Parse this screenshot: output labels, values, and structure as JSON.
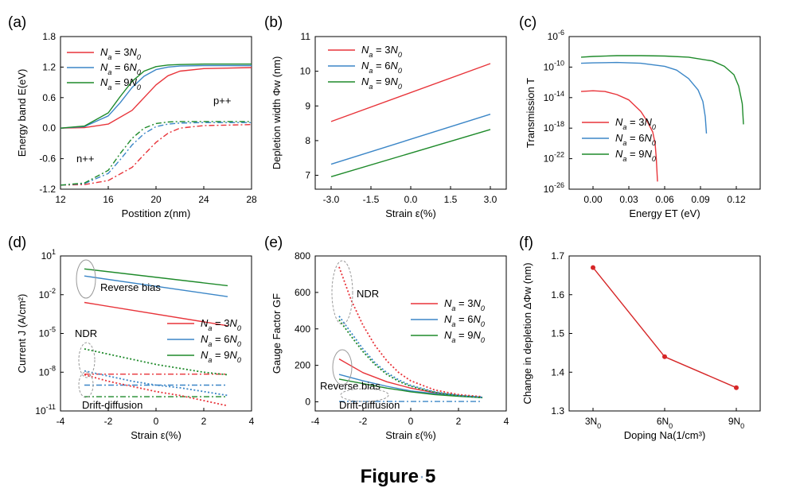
{
  "figure_caption": "Figure",
  "figure_number": "5",
  "panel_labels": [
    "(a)",
    "(b)",
    "(c)",
    "(d)",
    "(e)",
    "(f)"
  ],
  "colors": {
    "red": "#e8343a",
    "blue": "#3b86c7",
    "green": "#1e8a2a",
    "f_line": "#d62728"
  },
  "legend_labels": [
    "N",
    "a",
    " = 3",
    "N",
    "0",
    "N",
    "a",
    " = 6",
    "N",
    "0",
    "N",
    "a",
    " = 9",
    "N",
    "0"
  ],
  "chart_data": [
    {
      "panel": "(a)",
      "type": "line",
      "xlabel": "Postition z(nm)",
      "ylabel": "Energy band E(eV)",
      "xlim": [
        12,
        28
      ],
      "ylim": [
        -1.2,
        1.8
      ],
      "xticks": [
        "12",
        "16",
        "20",
        "24",
        "28"
      ],
      "yticks": [
        "-1.2",
        "-0.6",
        "0.0",
        "0.6",
        "1.2",
        "1.8"
      ],
      "series": [
        {
          "name": "Na = 3N0",
          "color": "#e8343a",
          "style": "solid",
          "x": [
            12,
            14,
            16,
            18,
            19,
            20,
            21,
            22,
            24,
            26,
            28
          ],
          "y": [
            0,
            0.01,
            0.08,
            0.35,
            0.6,
            0.85,
            1.03,
            1.12,
            1.17,
            1.18,
            1.19
          ]
        },
        {
          "name": "Na = 6N0",
          "color": "#3b86c7",
          "style": "solid",
          "x": [
            12,
            14,
            16,
            17,
            18,
            19,
            20,
            21,
            22,
            24,
            28
          ],
          "y": [
            0,
            0.03,
            0.24,
            0.5,
            0.8,
            1.02,
            1.15,
            1.2,
            1.22,
            1.23,
            1.23
          ]
        },
        {
          "name": "Na = 9N0",
          "color": "#1e8a2a",
          "style": "solid",
          "x": [
            12,
            14,
            16,
            17,
            18,
            19,
            20,
            21,
            22,
            24,
            28
          ],
          "y": [
            0,
            0.04,
            0.3,
            0.62,
            0.92,
            1.12,
            1.21,
            1.24,
            1.25,
            1.26,
            1.26
          ]
        },
        {
          "name": "",
          "color": "#e8343a",
          "style": "dashdot",
          "x": [
            12,
            14,
            16,
            18,
            19,
            20,
            21,
            22,
            24,
            26,
            28
          ],
          "y": [
            -1.12,
            -1.11,
            -1.03,
            -0.77,
            -0.52,
            -0.28,
            -0.1,
            0,
            0.05,
            0.06,
            0.07
          ]
        },
        {
          "name": "",
          "color": "#3b86c7",
          "style": "dashdot",
          "x": [
            12,
            14,
            16,
            17,
            18,
            19,
            20,
            21,
            22,
            24,
            28
          ],
          "y": [
            -1.12,
            -1.09,
            -0.89,
            -0.62,
            -0.33,
            -0.11,
            0.03,
            0.08,
            0.1,
            0.11,
            0.11
          ]
        },
        {
          "name": "",
          "color": "#1e8a2a",
          "style": "dashdot",
          "x": [
            12,
            14,
            16,
            17,
            18,
            19,
            20,
            21,
            22,
            24,
            28
          ],
          "y": [
            -1.12,
            -1.08,
            -0.83,
            -0.5,
            -0.2,
            0,
            0.09,
            0.12,
            0.13,
            0.13,
            0.13
          ]
        }
      ],
      "annotations": [
        {
          "text": "p++",
          "x": 25.8,
          "y": 0.75
        },
        {
          "text": "n++",
          "x": 13.9,
          "y": -0.78
        }
      ],
      "legend": "top-left"
    },
    {
      "panel": "(b)",
      "type": "line",
      "xlabel": "Strain ε(%)",
      "ylabel": "Depletion width Φw (nm)",
      "xlim": [
        -3.6,
        3.6
      ],
      "ylim": [
        6.6,
        11
      ],
      "xticks": [
        "-3.0",
        "-1.5",
        "0.0",
        "1.5",
        "3.0"
      ],
      "yticks": [
        "7",
        "8",
        "9",
        "10",
        "11"
      ],
      "series": [
        {
          "name": "Na = 3N0",
          "color": "#e8343a",
          "style": "solid",
          "x": [
            -3,
            3
          ],
          "y": [
            8.55,
            10.22
          ]
        },
        {
          "name": "Na = 6N0",
          "color": "#3b86c7",
          "style": "solid",
          "x": [
            -3,
            3
          ],
          "y": [
            7.32,
            8.76
          ]
        },
        {
          "name": "Na = 9N0",
          "color": "#1e8a2a",
          "style": "solid",
          "x": [
            -3,
            3
          ],
          "y": [
            6.96,
            8.32
          ]
        }
      ],
      "legend": "top-left"
    },
    {
      "panel": "(c)",
      "type": "line",
      "xlabel": "Energy ET (eV)",
      "ylabel": "Transmission T",
      "yscale": "log",
      "xlim": [
        -0.02,
        0.14
      ],
      "ylim": [
        -26,
        -6
      ],
      "xticks": [
        "0.00",
        "0.03",
        "0.06",
        "0.09",
        "0.12"
      ],
      "yticks": [
        "-6",
        "-10",
        "-14",
        "-18",
        "-22",
        "-26"
      ],
      "series": [
        {
          "name": "Na = 3N0",
          "color": "#e8343a",
          "style": "solid",
          "x": [
            -0.01,
            0.0,
            0.01,
            0.02,
            0.03,
            0.04,
            0.045,
            0.05,
            0.052,
            0.053,
            0.054
          ],
          "y": [
            -13.2,
            -13.1,
            -13.2,
            -13.6,
            -14.3,
            -15.8,
            -17.0,
            -18.5,
            -20.0,
            -22.0,
            -25.0
          ]
        },
        {
          "name": "Na = 6N0",
          "color": "#3b86c7",
          "style": "solid",
          "x": [
            -0.01,
            0.0,
            0.02,
            0.04,
            0.06,
            0.07,
            0.08,
            0.088,
            0.092,
            0.094,
            0.095
          ],
          "y": [
            -9.5,
            -9.45,
            -9.4,
            -9.5,
            -9.9,
            -10.4,
            -11.5,
            -13.0,
            -14.5,
            -16.5,
            -18.7
          ]
        },
        {
          "name": "Na = 9N0",
          "color": "#1e8a2a",
          "style": "solid",
          "x": [
            -0.01,
            0.0,
            0.02,
            0.04,
            0.06,
            0.08,
            0.1,
            0.11,
            0.118,
            0.122,
            0.125,
            0.126
          ],
          "y": [
            -8.7,
            -8.6,
            -8.5,
            -8.5,
            -8.55,
            -8.7,
            -9.2,
            -9.9,
            -11.0,
            -12.5,
            -14.8,
            -17.5
          ]
        }
      ],
      "legend": "bottom-left"
    },
    {
      "panel": "(d)",
      "type": "line",
      "xlabel": "Strain ε(%)",
      "ylabel": "Current J (A/cm²)",
      "yscale": "log",
      "xlim": [
        -4,
        4
      ],
      "ylim": [
        -11,
        1
      ],
      "xticks": [
        "-4",
        "-2",
        "0",
        "2",
        "4"
      ],
      "yticks": [
        "1",
        "-2",
        "-5",
        "-8",
        "-11"
      ],
      "series": [
        {
          "name": "Na = 3N0",
          "color": "#e8343a",
          "style": "solid",
          "x": [
            -3,
            3
          ],
          "y": [
            -2.6,
            -4.4
          ]
        },
        {
          "name": "Na = 6N0",
          "color": "#3b86c7",
          "style": "solid",
          "x": [
            -3,
            3
          ],
          "y": [
            -0.55,
            -2.15
          ]
        },
        {
          "name": "Na = 9N0",
          "color": "#1e8a2a",
          "style": "solid",
          "x": [
            -3,
            3
          ],
          "y": [
            0.0,
            -1.3
          ]
        },
        {
          "name": "",
          "color": "#e8343a",
          "style": "dashdot",
          "x": [
            -3,
            3
          ],
          "y": [
            -8.15,
            -8.15
          ]
        },
        {
          "name": "",
          "color": "#3b86c7",
          "style": "dashdot",
          "x": [
            -3,
            3
          ],
          "y": [
            -9.0,
            -9.0
          ]
        },
        {
          "name": "",
          "color": "#1e8a2a",
          "style": "dashdot",
          "x": [
            -3,
            3
          ],
          "y": [
            -9.9,
            -9.9
          ]
        },
        {
          "name": "",
          "color": "#e8343a",
          "style": "dotted",
          "x": [
            -3,
            -2,
            -1,
            0,
            1,
            2,
            3
          ],
          "y": [
            -8.2,
            -8.7,
            -9.1,
            -9.5,
            -9.8,
            -10.2,
            -10.6
          ]
        },
        {
          "name": "",
          "color": "#3b86c7",
          "style": "dotted",
          "x": [
            -3,
            -2,
            -1,
            0,
            1,
            2,
            3
          ],
          "y": [
            -7.9,
            -8.3,
            -8.7,
            -9.0,
            -9.2,
            -9.5,
            -9.8
          ]
        },
        {
          "name": "",
          "color": "#1e8a2a",
          "style": "dotted",
          "x": [
            -3,
            -2,
            -1,
            0,
            1,
            2,
            3
          ],
          "y": [
            -6.2,
            -6.6,
            -7.0,
            -7.4,
            -7.7,
            -8.0,
            -8.2
          ]
        }
      ],
      "annotations": [
        {
          "text": "Reverse bias",
          "x": -2.6,
          "y": -1.7
        },
        {
          "text": "NDR",
          "x": -3.6,
          "y": -5.6
        },
        {
          "text": "Drift-diffusion",
          "x": -3.2,
          "y": -10.6
        }
      ],
      "legend": "right"
    },
    {
      "panel": "(e)",
      "type": "line",
      "xlabel": "Strain ε(%)",
      "ylabel": "Gauge Factor GF",
      "xlim": [
        -4,
        4
      ],
      "ylim": [
        -50,
        800
      ],
      "xticks": [
        "-4",
        "-2",
        "0",
        "2",
        "4"
      ],
      "yticks": [
        "0",
        "200",
        "400",
        "600",
        "800"
      ],
      "series": [
        {
          "name": "Na = 3N0",
          "color": "#e8343a",
          "style": "solid",
          "x": [
            -3,
            -2,
            -1,
            0,
            1,
            2,
            3
          ],
          "y": [
            235,
            160,
            110,
            75,
            50,
            35,
            25
          ]
        },
        {
          "name": "Na = 6N0",
          "color": "#3b86c7",
          "style": "solid",
          "x": [
            -3,
            -2,
            -1,
            0,
            1,
            2,
            3
          ],
          "y": [
            150,
            115,
            85,
            60,
            45,
            33,
            25
          ]
        },
        {
          "name": "Na = 9N0",
          "color": "#1e8a2a",
          "style": "solid",
          "x": [
            -3,
            -2,
            -1,
            0,
            1,
            2,
            3
          ],
          "y": [
            125,
            100,
            75,
            55,
            40,
            30,
            23
          ]
        },
        {
          "name": "",
          "color": "#e8343a",
          "style": "dotted",
          "x": [
            -3,
            -2.5,
            -2,
            -1.5,
            -1,
            -0.5,
            0,
            1,
            2,
            3
          ],
          "y": [
            740,
            560,
            420,
            310,
            225,
            160,
            115,
            65,
            40,
            28
          ]
        },
        {
          "name": "",
          "color": "#3b86c7",
          "style": "dotted",
          "x": [
            -3,
            -2.5,
            -2,
            -1.5,
            -1,
            -0.5,
            0,
            1,
            2,
            3
          ],
          "y": [
            470,
            380,
            290,
            215,
            160,
            120,
            90,
            55,
            35,
            25
          ]
        },
        {
          "name": "",
          "color": "#1e8a2a",
          "style": "dotted",
          "x": [
            -3,
            -2.5,
            -2,
            -1.5,
            -1,
            -0.5,
            0,
            1,
            2,
            3
          ],
          "y": [
            450,
            360,
            275,
            205,
            150,
            112,
            85,
            52,
            33,
            23
          ]
        },
        {
          "name": "",
          "color": "#3b86c7",
          "style": "dashdot",
          "x": [
            -3,
            3
          ],
          "y": [
            2,
            2
          ]
        }
      ],
      "annotations": [
        {
          "text": "NDR",
          "x": -2.2,
          "y": 580
        },
        {
          "text": "Reverse bias",
          "x": -3.9,
          "y": 100
        },
        {
          "text": "Drift-diffusion",
          "x": -3.1,
          "y": -25
        }
      ],
      "legend": "right"
    },
    {
      "panel": "(f)",
      "type": "line",
      "xlabel": "Doping Na(1/cm³)",
      "ylabel": "Change in depletion ΔΦw (nm)",
      "categories": [
        "3N0",
        "6N0",
        "9N0"
      ],
      "ylim": [
        1.3,
        1.7
      ],
      "yticks": [
        "1.3",
        "1.4",
        "1.5",
        "1.6",
        "1.7"
      ],
      "series": [
        {
          "name": "",
          "color": "#d62728",
          "style": "solid-markers",
          "x": [
            "3N0",
            "6N0",
            "9N0"
          ],
          "y": [
            1.67,
            1.44,
            1.36
          ]
        }
      ]
    }
  ]
}
